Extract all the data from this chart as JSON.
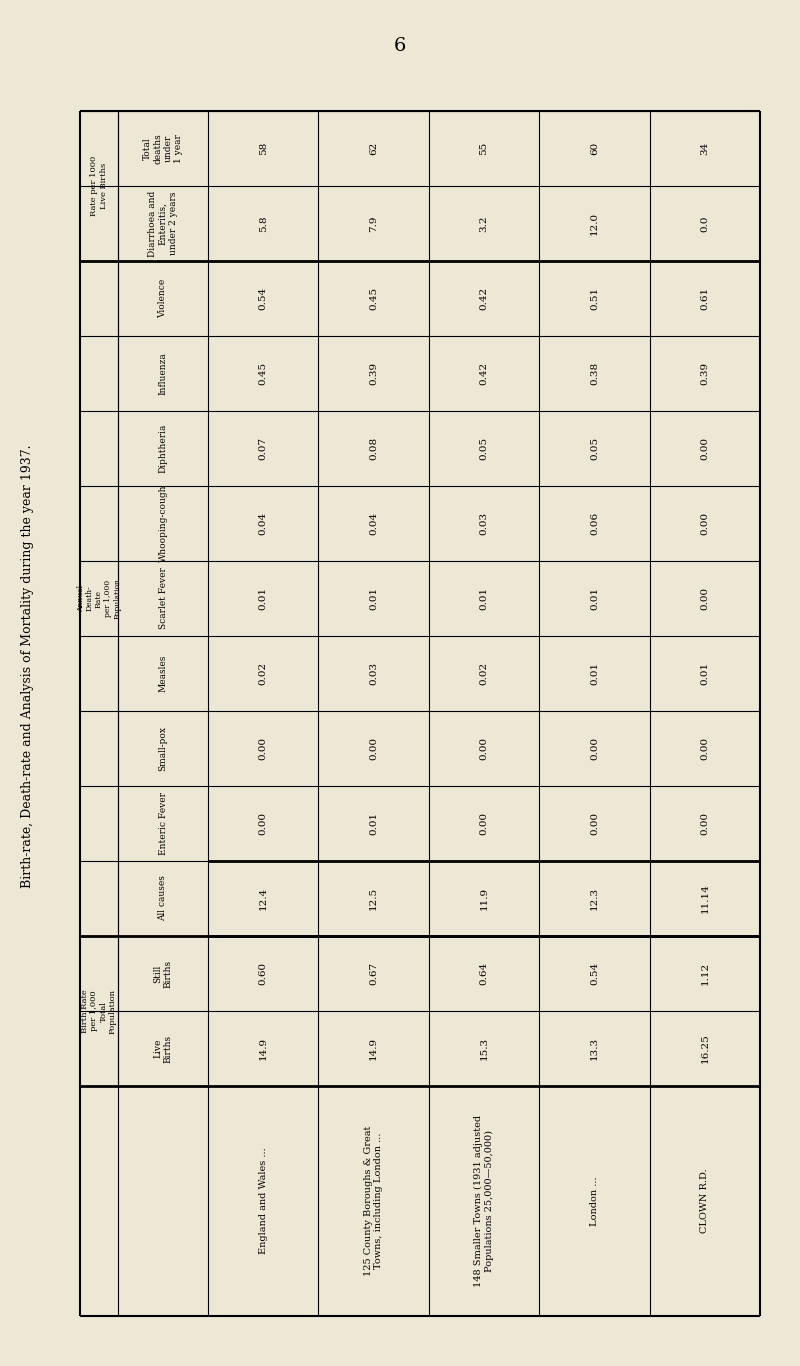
{
  "title": "Birth-rate, Death-rate and Analysis of Mortality during the year 1937.",
  "page_number": "6",
  "bg_color": "#EDE8D5",
  "text_color": "#1a1a2e",
  "columns": [
    "England and Wales ...",
    "125 County Boroughs & Great\nTowns, including London ...",
    "148 Smaller Towns (1931 adjusted\nPopulations 25,000—50,000)",
    "London ...",
    "CLOWN R.D."
  ],
  "row_groups": [
    {
      "group_label": "Rate per 1000\nLive Births",
      "rows": [
        {
          "label": "Total\ndeaths\nunder\n1 year",
          "values": [
            "58",
            "62",
            "55",
            "60",
            "34"
          ]
        },
        {
          "label": "Diarrhoea and\nEnteritis,\nunder 2 years",
          "values": [
            "5.8",
            "7.9",
            "3.2",
            "12.0",
            "0.0"
          ]
        }
      ]
    },
    {
      "group_label": "Annual Death-Rate per 1,000 Population",
      "rows": [
        {
          "label": "Violence",
          "values": [
            "0.54",
            "0.45",
            "0.42",
            "0.51",
            "0.61"
          ]
        },
        {
          "label": "Influenza",
          "values": [
            "0.45",
            "0.39",
            "0.42",
            "0.38",
            "0.39"
          ]
        },
        {
          "label": "Diphtheria",
          "values": [
            "0.07",
            "0.08",
            "0.05",
            "0.05",
            "0.00"
          ]
        },
        {
          "label": "Whooping-cough",
          "values": [
            "0.04",
            "0.04",
            "0.03",
            "0.06",
            "0.00"
          ]
        },
        {
          "label": "Scarlet Fever",
          "values": [
            "0.01",
            "0.01",
            "0.01",
            "0.01",
            "0.00"
          ]
        },
        {
          "label": "Measles",
          "values": [
            "0.02",
            "0.03",
            "0.02",
            "0.01",
            "0.01"
          ]
        },
        {
          "label": "Small-pox",
          "values": [
            "0.00",
            "0.00",
            "0.00",
            "0.00",
            "0.00"
          ]
        },
        {
          "label": "Enteric Fever",
          "values": [
            "0.00",
            "0.01",
            "0.00",
            "0.00",
            "0.00"
          ]
        },
        {
          "label": "All causes",
          "values": [
            "12.4",
            "12.5",
            "11.9",
            "12.3",
            "11.14"
          ]
        }
      ]
    },
    {
      "group_label": "Birth Rate\nper 1,000\nTotal\nPopulation",
      "rows": [
        {
          "label": "Still\nBirths",
          "values": [
            "0.60",
            "0.67",
            "0.64",
            "0.54",
            "1.12"
          ]
        },
        {
          "label": "Live\nBirths",
          "values": [
            "14.9",
            "14.9",
            "15.3",
            "13.3",
            "16.25"
          ]
        }
      ]
    }
  ],
  "annual_group_label": "Annual Death-Rate per 1,000 Population",
  "annual_group_sublabel": "Annual\nDeath-Rate\nper 1,000\nPopulation"
}
